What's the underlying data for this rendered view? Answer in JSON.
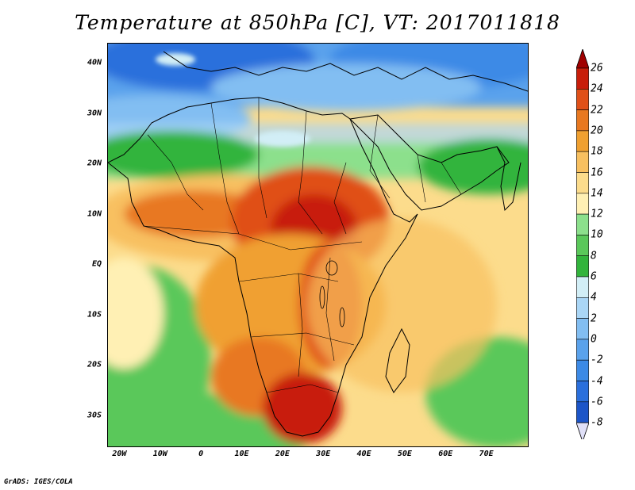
{
  "title": "Temperature at 850hPa [C], VT: 2017011818",
  "credit": "GrADS: IGES/COLA",
  "map": {
    "lon_range": [
      -23,
      80
    ],
    "lat_range": [
      -36,
      44
    ],
    "lat_ticks": [
      {
        "value": 40,
        "label": "40N"
      },
      {
        "value": 30,
        "label": "30N"
      },
      {
        "value": 20,
        "label": "20N"
      },
      {
        "value": 10,
        "label": "10N"
      },
      {
        "value": 0,
        "label": "EQ"
      },
      {
        "value": -10,
        "label": "10S"
      },
      {
        "value": -20,
        "label": "20S"
      },
      {
        "value": -30,
        "label": "30S"
      }
    ],
    "lon_ticks": [
      {
        "value": -20,
        "label": "20W"
      },
      {
        "value": -10,
        "label": "10W"
      },
      {
        "value": 0,
        "label": "0"
      },
      {
        "value": 10,
        "label": "10E"
      },
      {
        "value": 20,
        "label": "20E"
      },
      {
        "value": 30,
        "label": "30E"
      },
      {
        "value": 40,
        "label": "40E"
      },
      {
        "value": 50,
        "label": "50E"
      },
      {
        "value": 60,
        "label": "60E"
      },
      {
        "value": 70,
        "label": "70E"
      }
    ]
  },
  "colorbar": {
    "levels": [
      "-8",
      "-6",
      "-4",
      "-2",
      "0",
      "2",
      "4",
      "6",
      "8",
      "10",
      "12",
      "14",
      "16",
      "18",
      "20",
      "22",
      "24",
      "26"
    ],
    "colors": [
      "#1e3ca0",
      "#1c55c8",
      "#2a6fdc",
      "#3c8ae6",
      "#5aa2ec",
      "#82bef2",
      "#aad6f6",
      "#d2eef6",
      "#32b43c",
      "#5ac85a",
      "#8ce08c",
      "#fff0b4",
      "#fcdc8c",
      "#f8c060",
      "#f0a030",
      "#e87820",
      "#e05018",
      "#c81e0a",
      "#a00000"
    ]
  }
}
